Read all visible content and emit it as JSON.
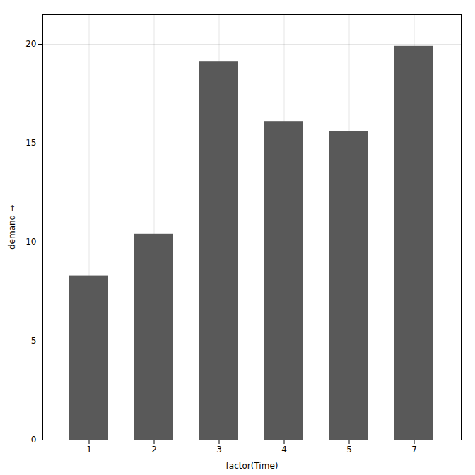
{
  "chart_data": {
    "type": "bar",
    "categories": [
      "1",
      "2",
      "3",
      "4",
      "5",
      "7"
    ],
    "values": [
      8.3,
      10.4,
      19.1,
      16.1,
      15.6,
      19.9
    ],
    "color": "#595959",
    "xlabel": "factor(Time)",
    "ylabel": "demand",
    "ylim": [
      0,
      21.5
    ],
    "yticks": [
      0,
      5,
      10,
      15,
      20
    ],
    "grid": true
  }
}
